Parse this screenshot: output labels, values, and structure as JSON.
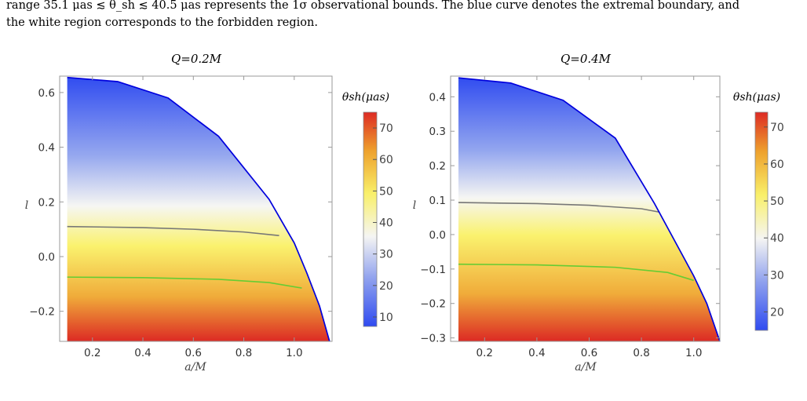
{
  "caption": {
    "line1": "range 35.1 μas ≲ θ_sh ≲ 40.5 μas represents the 1σ observational bounds. The blue curve denotes the extremal boundary, and",
    "line2": "the white region corresponds to the forbidden region."
  },
  "chart_data": [
    {
      "type": "heatmap",
      "title": "Q=0.2M",
      "xlabel": "a/M",
      "ylabel": "l",
      "xlim": [
        0.07,
        1.15
      ],
      "ylim": [
        -0.31,
        0.66
      ],
      "xticks": [
        "0.2",
        "0.4",
        "0.6",
        "0.8",
        "1.0"
      ],
      "yticks": [
        "0.6",
        "0.4",
        "0.2",
        "0.0",
        "-0.2"
      ],
      "colorbar": {
        "label": "θsh(μas)",
        "range": [
          7,
          75
        ],
        "ticks": [
          "70",
          "60",
          "50",
          "40",
          "30",
          "20",
          "10"
        ]
      },
      "boundary": {
        "color": "#0000dd",
        "points": [
          [
            0.1,
            0.655
          ],
          [
            0.3,
            0.64
          ],
          [
            0.5,
            0.58
          ],
          [
            0.7,
            0.44
          ],
          [
            0.9,
            0.21
          ],
          [
            1.0,
            0.05
          ],
          [
            1.05,
            -0.06
          ],
          [
            1.1,
            -0.18
          ],
          [
            1.14,
            -0.31
          ]
        ]
      },
      "contours": [
        {
          "color": "#777777",
          "points": [
            [
              0.1,
              0.11
            ],
            [
              0.4,
              0.106
            ],
            [
              0.6,
              0.1
            ],
            [
              0.8,
              0.09
            ],
            [
              0.94,
              0.077
            ]
          ]
        },
        {
          "color": "#66cc33",
          "points": [
            [
              0.1,
              -0.075
            ],
            [
              0.4,
              -0.077
            ],
            [
              0.7,
              -0.083
            ],
            [
              0.9,
              -0.095
            ],
            [
              1.03,
              -0.115
            ]
          ]
        }
      ]
    },
    {
      "type": "heatmap",
      "title": "Q=0.4M",
      "xlabel": "a/M",
      "ylabel": "l",
      "xlim": [
        0.07,
        1.1
      ],
      "ylim": [
        -0.31,
        0.46
      ],
      "xticks": [
        "0.2",
        "0.4",
        "0.6",
        "0.8",
        "1.0"
      ],
      "yticks": [
        "0.4",
        "0.3",
        "0.2",
        "0.1",
        "0.0",
        "-0.1",
        "-0.2",
        "-0.3"
      ],
      "colorbar": {
        "label": "θsh(μas)",
        "range": [
          15,
          74
        ],
        "ticks": [
          "70",
          "60",
          "50",
          "40",
          "30",
          "20"
        ]
      },
      "boundary": {
        "color": "#0000dd",
        "points": [
          [
            0.1,
            0.455
          ],
          [
            0.3,
            0.44
          ],
          [
            0.5,
            0.39
          ],
          [
            0.7,
            0.28
          ],
          [
            0.85,
            0.09
          ],
          [
            0.95,
            -0.05
          ],
          [
            1.0,
            -0.12
          ],
          [
            1.05,
            -0.2
          ],
          [
            1.1,
            -0.31
          ]
        ]
      },
      "contours": [
        {
          "color": "#777777",
          "points": [
            [
              0.1,
              0.093
            ],
            [
              0.4,
              0.09
            ],
            [
              0.6,
              0.085
            ],
            [
              0.8,
              0.075
            ],
            [
              0.87,
              0.065
            ]
          ]
        },
        {
          "color": "#66cc33",
          "points": [
            [
              0.1,
              -0.086
            ],
            [
              0.4,
              -0.088
            ],
            [
              0.7,
              -0.095
            ],
            [
              0.9,
              -0.11
            ],
            [
              1.0,
              -0.133
            ]
          ]
        }
      ]
    }
  ]
}
